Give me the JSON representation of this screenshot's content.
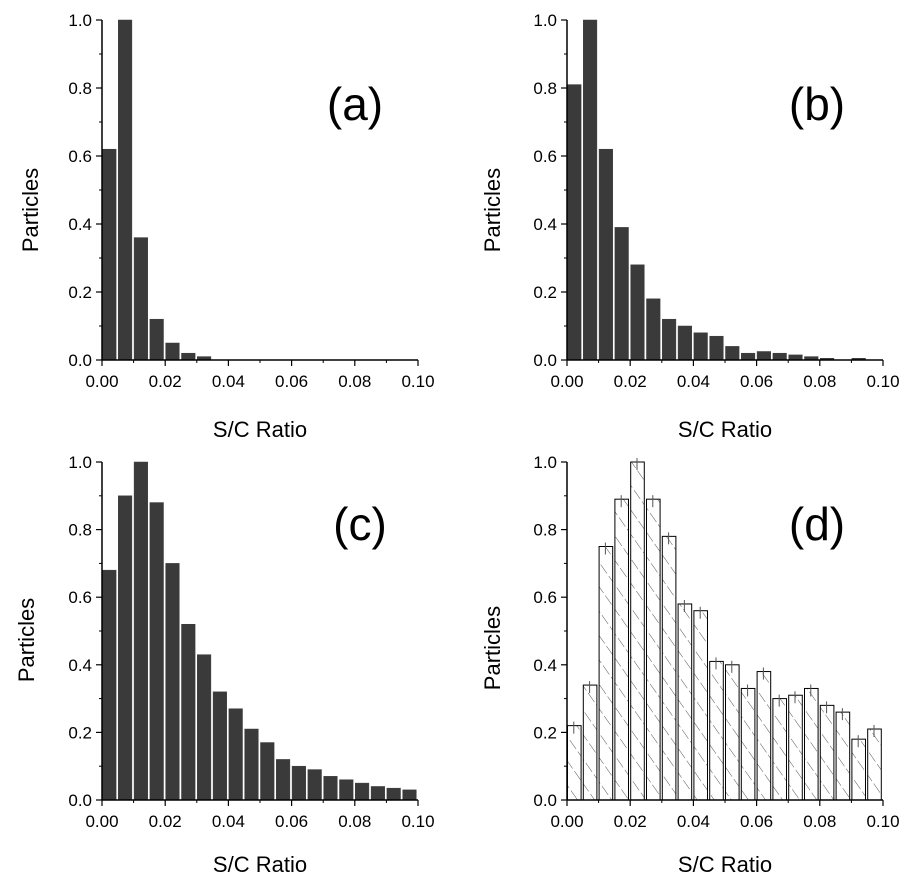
{
  "chart_data": [
    {
      "type": "bar",
      "panel_label": "(a)",
      "xlabel": "S/C Ratio",
      "ylabel": "Particles",
      "xlim": [
        0.0,
        0.1
      ],
      "ylim": [
        0.0,
        1.0
      ],
      "xticks": [
        "0.00",
        "0.02",
        "0.04",
        "0.06",
        "0.08",
        "0.10"
      ],
      "yticks": [
        "0.0",
        "0.2",
        "0.4",
        "0.6",
        "0.8",
        "1.0"
      ],
      "bin_width": 0.005,
      "bin_starts": [
        0.0,
        0.005,
        0.01,
        0.015,
        0.02,
        0.025,
        0.03,
        0.035,
        0.04,
        0.045,
        0.05,
        0.055,
        0.06,
        0.065,
        0.07,
        0.075,
        0.08,
        0.085,
        0.09,
        0.095
      ],
      "values": [
        0.62,
        1.0,
        0.36,
        0.12,
        0.05,
        0.02,
        0.01,
        0,
        0,
        0,
        0,
        0,
        0,
        0,
        0,
        0,
        0,
        0,
        0,
        0
      ],
      "style": "solid",
      "bar_color": "#3a3a3a"
    },
    {
      "type": "bar",
      "panel_label": "(b)",
      "xlabel": "S/C Ratio",
      "ylabel": "Particles",
      "xlim": [
        0.0,
        0.1
      ],
      "ylim": [
        0.0,
        1.0
      ],
      "xticks": [
        "0.00",
        "0.02",
        "0.04",
        "0.06",
        "0.08",
        "0.10"
      ],
      "yticks": [
        "0.0",
        "0.2",
        "0.4",
        "0.6",
        "0.8",
        "1.0"
      ],
      "bin_width": 0.005,
      "bin_starts": [
        0.0,
        0.005,
        0.01,
        0.015,
        0.02,
        0.025,
        0.03,
        0.035,
        0.04,
        0.045,
        0.05,
        0.055,
        0.06,
        0.065,
        0.07,
        0.075,
        0.08,
        0.085,
        0.09,
        0.095
      ],
      "values": [
        0.81,
        1.0,
        0.62,
        0.39,
        0.28,
        0.18,
        0.12,
        0.1,
        0.08,
        0.07,
        0.04,
        0.02,
        0.025,
        0.02,
        0.015,
        0.01,
        0.005,
        0,
        0.005,
        0
      ],
      "style": "solid",
      "bar_color": "#3a3a3a"
    },
    {
      "type": "bar",
      "panel_label": "(c)",
      "xlabel": "S/C Ratio",
      "ylabel": "Particles",
      "xlim": [
        0.0,
        0.1
      ],
      "ylim": [
        0.0,
        1.0
      ],
      "xticks": [
        "0.00",
        "0.02",
        "0.04",
        "0.06",
        "0.08",
        "0.10"
      ],
      "yticks": [
        "0.0",
        "0.2",
        "0.4",
        "0.6",
        "0.8",
        "1.0"
      ],
      "bin_width": 0.005,
      "bin_starts": [
        0.0,
        0.005,
        0.01,
        0.015,
        0.02,
        0.025,
        0.03,
        0.035,
        0.04,
        0.045,
        0.05,
        0.055,
        0.06,
        0.065,
        0.07,
        0.075,
        0.08,
        0.085,
        0.09,
        0.095
      ],
      "values": [
        0.68,
        0.9,
        1.0,
        0.88,
        0.7,
        0.52,
        0.43,
        0.32,
        0.27,
        0.21,
        0.17,
        0.12,
        0.1,
        0.09,
        0.07,
        0.06,
        0.05,
        0.04,
        0.035,
        0.03
      ],
      "style": "solid",
      "bar_color": "#3a3a3a"
    },
    {
      "type": "bar",
      "panel_label": "(d)",
      "xlabel": "S/C Ratio",
      "ylabel": "Particles",
      "xlim": [
        0.0,
        0.1
      ],
      "ylim": [
        0.0,
        1.0
      ],
      "xticks": [
        "0.00",
        "0.02",
        "0.04",
        "0.06",
        "0.08",
        "0.10"
      ],
      "yticks": [
        "0.0",
        "0.2",
        "0.4",
        "0.6",
        "0.8",
        "1.0"
      ],
      "bin_width": 0.005,
      "bin_starts": [
        0.0,
        0.005,
        0.01,
        0.015,
        0.02,
        0.025,
        0.03,
        0.035,
        0.04,
        0.045,
        0.05,
        0.055,
        0.06,
        0.065,
        0.07,
        0.075,
        0.08,
        0.085,
        0.09,
        0.095
      ],
      "values": [
        0.22,
        0.34,
        0.75,
        0.89,
        1.0,
        0.89,
        0.78,
        0.58,
        0.56,
        0.41,
        0.4,
        0.33,
        0.38,
        0.3,
        0.31,
        0.33,
        0.28,
        0.26,
        0.18,
        0.21
      ],
      "style": "hatched",
      "bar_color": "#ffffff"
    }
  ],
  "colors": {
    "axis": "#000000",
    "background": "#ffffff",
    "hatch": "#555555"
  }
}
